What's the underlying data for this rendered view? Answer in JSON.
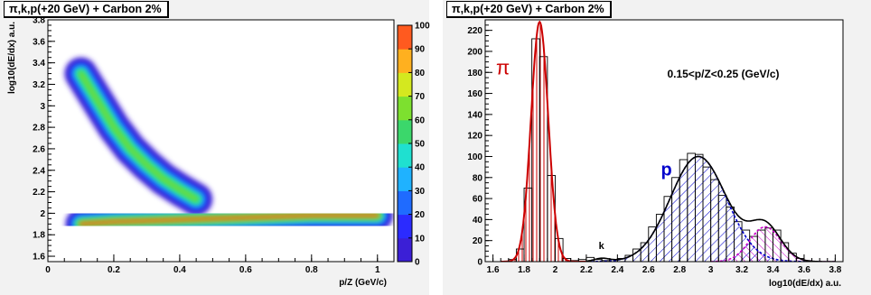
{
  "chart_data": [
    {
      "type": "heatmap",
      "title": "π,k,p(+20 GeV) + Carbon 2%",
      "xlabel": "p/Z (GeV/c)",
      "ylabel": "log10(dE/dx) a.u.",
      "xlim": [
        0,
        1.05
      ],
      "ylim": [
        1.55,
        3.8
      ],
      "x_ticks": [
        "0",
        "0.2",
        "0.4",
        "0.6",
        "0.8",
        "1"
      ],
      "y_ticks": [
        "1.6",
        "1.8",
        "2",
        "2.2",
        "2.4",
        "2.6",
        "2.8",
        "3",
        "3.2",
        "3.4",
        "3.6",
        "3.8"
      ],
      "colorbar": {
        "range": [
          0,
          100
        ],
        "labels": [
          "0",
          "10",
          "20",
          "30",
          "40",
          "50",
          "60",
          "70",
          "80",
          "90",
          "100"
        ]
      },
      "bands": [
        {
          "name": "pion band",
          "x": [
            0.1,
            0.15,
            0.2,
            0.25,
            0.3,
            0.35,
            0.4,
            0.45
          ],
          "y": [
            3.3,
            3.05,
            2.8,
            2.6,
            2.45,
            2.32,
            2.22,
            2.13
          ]
        },
        {
          "name": "proton band",
          "x": [
            0.1,
            0.2,
            0.3,
            0.4,
            0.5,
            0.6,
            0.7,
            0.8,
            0.9,
            1.0
          ],
          "y": [
            1.9,
            1.92,
            1.93,
            1.94,
            1.95,
            1.96,
            1.97,
            1.98,
            1.98,
            1.98
          ]
        }
      ]
    },
    {
      "type": "bar",
      "title": "π,k,p(+20 GeV) + Carbon 2%",
      "xlabel": "log10(dE/dx) a.u.",
      "ylabel": "",
      "xlim": [
        1.55,
        3.85
      ],
      "ylim": [
        0,
        230
      ],
      "x_ticks": [
        "1.6",
        "1.8",
        "2",
        "2.2",
        "2.4",
        "2.6",
        "2.8",
        "3",
        "3.2",
        "3.4",
        "3.6",
        "3.8"
      ],
      "y_ticks": [
        "0",
        "20",
        "40",
        "60",
        "80",
        "100",
        "120",
        "140",
        "160",
        "180",
        "200",
        "220"
      ],
      "bin_width": 0.05,
      "x": [
        1.575,
        1.625,
        1.675,
        1.725,
        1.775,
        1.825,
        1.875,
        1.925,
        1.975,
        2.025,
        2.075,
        2.125,
        2.175,
        2.225,
        2.275,
        2.325,
        2.375,
        2.425,
        2.475,
        2.525,
        2.575,
        2.625,
        2.675,
        2.725,
        2.775,
        2.825,
        2.875,
        2.925,
        2.975,
        3.025,
        3.075,
        3.125,
        3.175,
        3.225,
        3.275,
        3.325,
        3.375,
        3.425,
        3.475,
        3.525,
        3.575,
        3.625,
        3.675,
        3.725,
        3.775
      ],
      "values": [
        0,
        0,
        0,
        2,
        12,
        70,
        212,
        195,
        82,
        22,
        3,
        1,
        2,
        4,
        2,
        1,
        2,
        3,
        6,
        12,
        18,
        33,
        45,
        62,
        80,
        97,
        103,
        102,
        90,
        78,
        63,
        52,
        38,
        30,
        24,
        30,
        32,
        30,
        18,
        8,
        3,
        1,
        0,
        0,
        0
      ],
      "series": [
        {
          "name": "π",
          "type": "gaussian fit",
          "mean": 1.9,
          "sigma": 0.055,
          "amplitude": 228,
          "color": "#cc0000"
        },
        {
          "name": "k",
          "type": "gaussian fit",
          "mean": 2.3,
          "sigma": 0.05,
          "amplitude": 3,
          "color": "#000000"
        },
        {
          "name": "p",
          "type": "gaussian fit",
          "mean": 2.92,
          "sigma": 0.18,
          "amplitude": 100,
          "color": "#0000cc"
        },
        {
          "name": "",
          "type": "gaussian fit",
          "mean": 3.35,
          "sigma": 0.1,
          "amplitude": 33,
          "color": "#cc00cc"
        }
      ],
      "annotations": [
        "π",
        "p",
        "k",
        "0.15<p/Z<0.25 (GeV/c)"
      ]
    }
  ],
  "colors": {
    "pion": "#cc0000",
    "proton": "#0000cc",
    "extra": "#cc00cc",
    "pad": "#f2f2f2"
  }
}
